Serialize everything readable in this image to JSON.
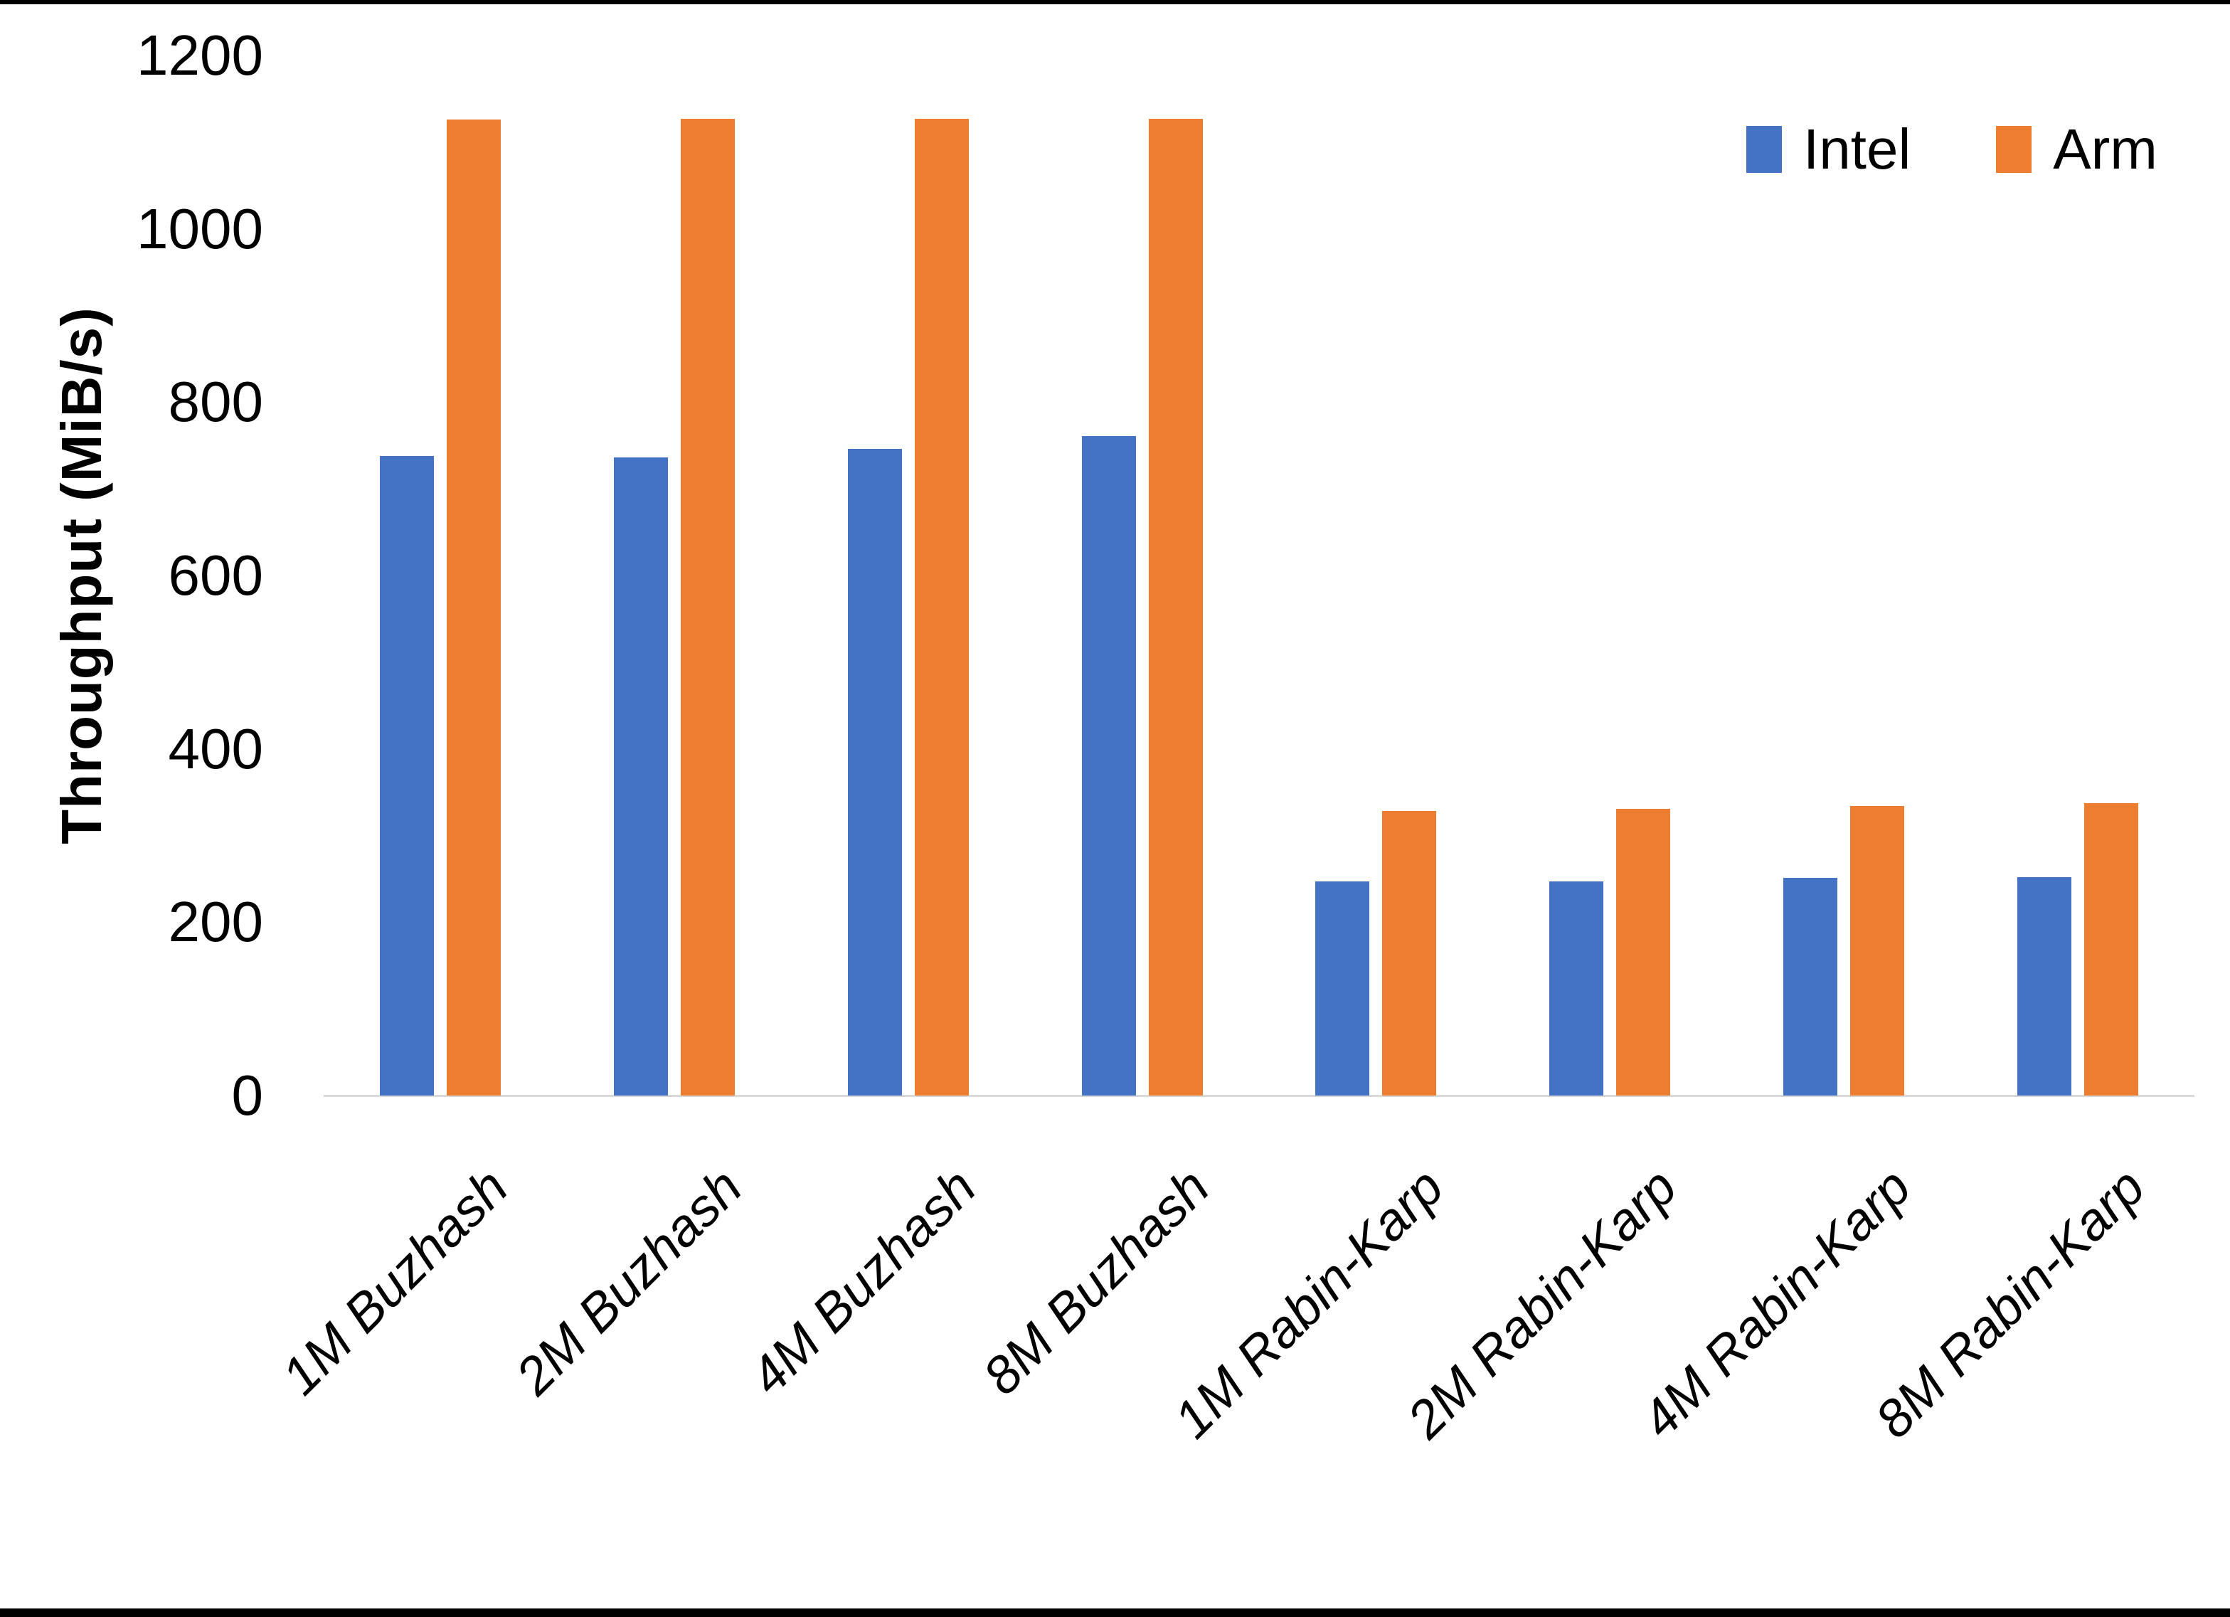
{
  "chart_data": {
    "type": "bar",
    "title": "",
    "y_axis_title": "Throughput (MiB/s)",
    "xlabel": "",
    "ylabel": "Throughput (MiB/s)",
    "categories": [
      "1M Buzhash",
      "2M Buzhash",
      "4M Buzhash",
      "8M Buzhash",
      "1M Rabin-Karp",
      "2M Rabin-Karp",
      "4M Rabin-Karp",
      "8M Rabin-Karp"
    ],
    "series": [
      {
        "name": "Intel",
        "color": "#4472C4",
        "values": [
          738,
          736,
          746,
          761,
          247,
          247,
          251,
          252
        ]
      },
      {
        "name": "Arm",
        "color": "#ED7D31",
        "values": [
          1126,
          1127,
          1127,
          1127,
          328,
          331,
          334,
          337
        ]
      }
    ],
    "ylim": [
      0,
      1200
    ],
    "yticks": [
      0,
      200,
      400,
      600,
      800,
      1000,
      1200
    ],
    "grid": false,
    "legend_position": "top-right",
    "colors": {
      "axis_line": "#D9D9D9",
      "text": "#000000",
      "background": "#FFFFFF",
      "frame": "#000000"
    }
  }
}
